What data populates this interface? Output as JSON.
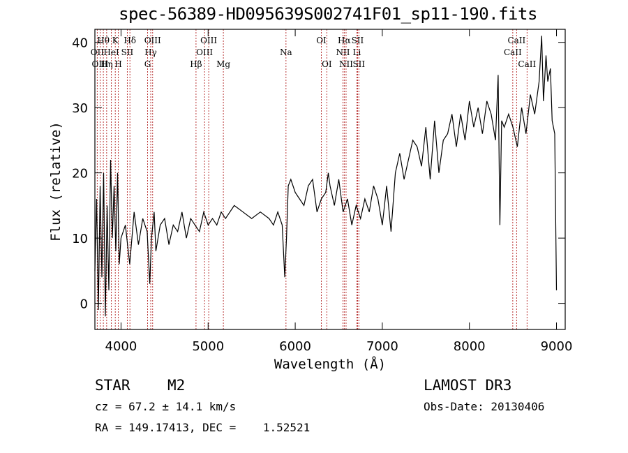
{
  "chart_data": {
    "type": "line",
    "title": "spec-56389-HD095639S002741F01_sp11-190.fits",
    "xlabel": "Wavelength (Å)",
    "ylabel": "Flux (relative)",
    "xlim": [
      3700,
      9100
    ],
    "ylim": [
      -4,
      42
    ],
    "xticks": [
      4000,
      5000,
      6000,
      7000,
      8000,
      9000
    ],
    "yticks": [
      0,
      10,
      20,
      30,
      40
    ],
    "grid": false,
    "series": [
      {
        "x": [
          3700,
          3720,
          3740,
          3760,
          3780,
          3800,
          3820,
          3840,
          3860,
          3880,
          3900,
          3920,
          3940,
          3960,
          3980,
          4000,
          4050,
          4100,
          4150,
          4200,
          4250,
          4300,
          4330,
          4350,
          4380,
          4400,
          4450,
          4500,
          4550,
          4600,
          4650,
          4700,
          4750,
          4800,
          4850,
          4900,
          4950,
          5000,
          5050,
          5100,
          5150,
          5200,
          5300,
          5400,
          5500,
          5600,
          5700,
          5750,
          5800,
          5850,
          5880,
          5900,
          5920,
          5950,
          6000,
          6050,
          6100,
          6150,
          6200,
          6250,
          6300,
          6350,
          6380,
          6400,
          6450,
          6500,
          6550,
          6600,
          6650,
          6700,
          6750,
          6800,
          6850,
          6900,
          6950,
          7000,
          7050,
          7100,
          7150,
          7200,
          7250,
          7300,
          7350,
          7400,
          7450,
          7500,
          7550,
          7600,
          7650,
          7700,
          7750,
          7800,
          7850,
          7900,
          7950,
          8000,
          8050,
          8100,
          8150,
          8200,
          8250,
          8300,
          8330,
          8350,
          8370,
          8400,
          8450,
          8500,
          8550,
          8600,
          8650,
          8700,
          8750,
          8800,
          8830,
          8850,
          8880,
          8900,
          8930,
          8950,
          8980,
          9000
        ],
        "y": [
          5,
          16,
          -1,
          18,
          4,
          20,
          -2,
          15,
          2,
          22,
          10,
          18,
          8,
          20,
          6,
          10,
          12,
          6,
          14,
          9,
          13,
          11,
          3,
          10,
          14,
          8,
          12,
          13,
          9,
          12,
          11,
          14,
          10,
          13,
          12,
          11,
          14,
          12,
          13,
          12,
          14,
          13,
          15,
          14,
          13,
          14,
          13,
          12,
          14,
          12,
          4,
          10,
          18,
          19,
          17,
          16,
          15,
          18,
          19,
          14,
          16,
          17,
          20,
          18,
          15,
          19,
          14,
          16,
          12,
          15,
          13,
          16,
          14,
          18,
          16,
          12,
          18,
          11,
          20,
          23,
          19,
          22,
          25,
          24,
          21,
          27,
          19,
          28,
          20,
          25,
          26,
          29,
          24,
          29,
          25,
          31,
          27,
          30,
          26,
          31,
          29,
          25,
          35,
          12,
          28,
          27,
          29,
          27,
          24,
          30,
          26,
          32,
          29,
          34,
          41,
          31,
          38,
          34,
          36,
          28,
          26,
          2
        ]
      }
    ],
    "line_markers": [
      {
        "label": "Hθ",
        "wavelength": 3797,
        "row": 1
      },
      {
        "label": "OII",
        "wavelength": 3727,
        "row": 2
      },
      {
        "label": "OIII",
        "wavelength": 3760,
        "row": 3
      },
      {
        "label": "K",
        "wavelength": 3934,
        "row": 1
      },
      {
        "label": "HeI",
        "wavelength": 3889,
        "row": 2
      },
      {
        "label": "Hη",
        "wavelength": 3835,
        "row": 3
      },
      {
        "label": "Hδ",
        "wavelength": 4102,
        "row": 1
      },
      {
        "label": "SII",
        "wavelength": 4072,
        "row": 2
      },
      {
        "label": "H",
        "wavelength": 3969,
        "row": 3
      },
      {
        "label": "OIII",
        "wavelength": 4363,
        "row": 1
      },
      {
        "label": "Hγ",
        "wavelength": 4341,
        "row": 2
      },
      {
        "label": "G",
        "wavelength": 4305,
        "row": 3
      },
      {
        "label": "OIII",
        "wavelength": 5007,
        "row": 1
      },
      {
        "label": "OIII",
        "wavelength": 4959,
        "row": 2
      },
      {
        "label": "Hβ",
        "wavelength": 4861,
        "row": 3
      },
      {
        "label": "Mg",
        "wavelength": 5175,
        "row": 3
      },
      {
        "label": "Na",
        "wavelength": 5894,
        "row": 2
      },
      {
        "label": "OI",
        "wavelength": 6300,
        "row": 1
      },
      {
        "label": "OI",
        "wavelength": 6363,
        "row": 3
      },
      {
        "label": "Hα",
        "wavelength": 6563,
        "row": 1
      },
      {
        "label": "NII",
        "wavelength": 6548,
        "row": 2
      },
      {
        "label": "NII",
        "wavelength": 6584,
        "row": 3
      },
      {
        "label": "SII",
        "wavelength": 6716,
        "row": 1
      },
      {
        "label": "Li",
        "wavelength": 6708,
        "row": 2
      },
      {
        "label": "SII",
        "wavelength": 6731,
        "row": 3
      },
      {
        "label": "CaII",
        "wavelength": 8542,
        "row": 1
      },
      {
        "label": "CaII",
        "wavelength": 8498,
        "row": 2
      },
      {
        "label": "CaII",
        "wavelength": 8662,
        "row": 3
      }
    ]
  },
  "info": {
    "object_class": "STAR",
    "subclass": "M2",
    "survey": "LAMOST DR3",
    "redshift_line": "cz = 67.2 ± 14.1 km/s",
    "obs_date_line": "Obs-Date: 20130406",
    "coords_line": "RA = 149.17413, DEC =    1.52521"
  },
  "colors": {
    "spectrum": "#000000",
    "line_marker": "#b22222",
    "axes": "#000000"
  }
}
